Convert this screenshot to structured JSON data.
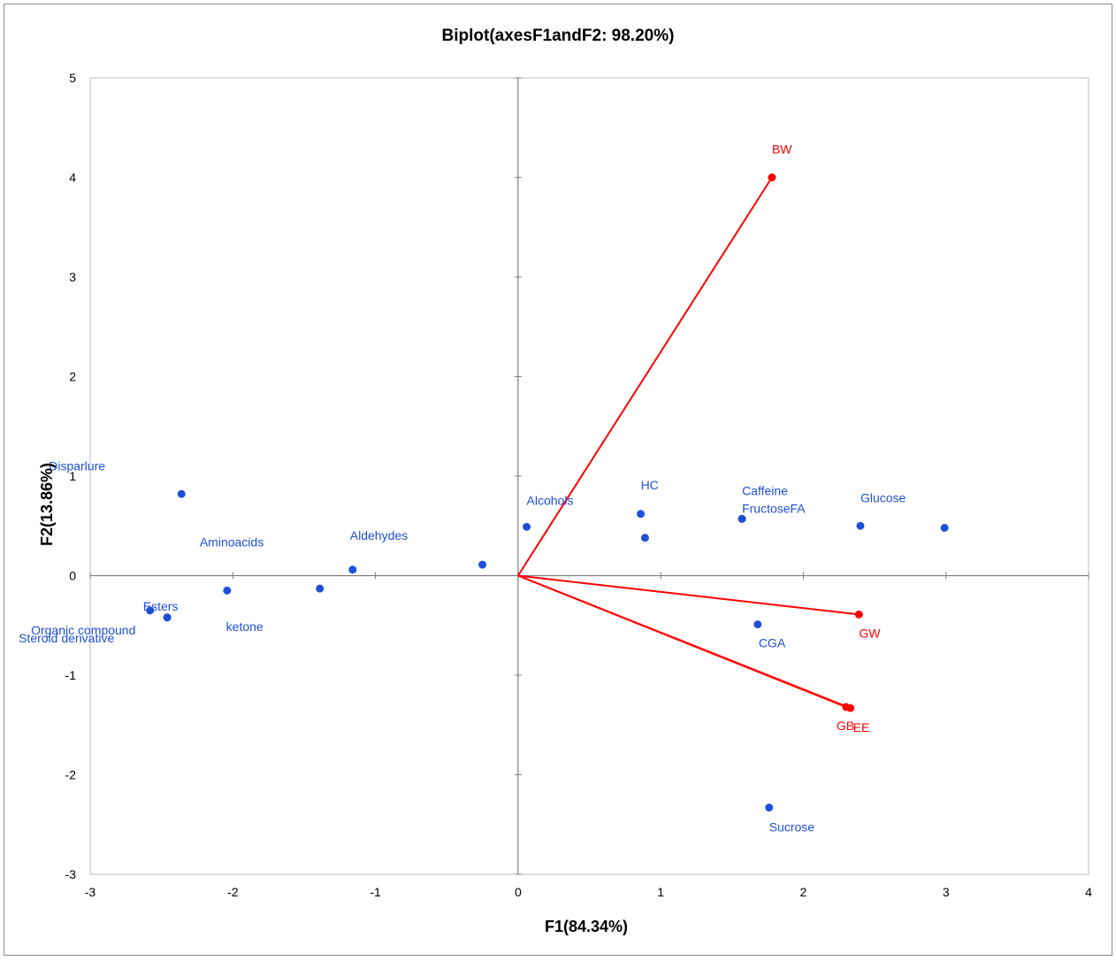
{
  "chart_data": {
    "type": "scatter",
    "title": "Biplot(axesF1andF2: 98.20%)",
    "xlabel": "F1(84.34%)",
    "ylabel": "F2(13.86%)",
    "xlim": [
      -3,
      4
    ],
    "ylim": [
      -3,
      5
    ],
    "xticks": [
      -3,
      -2,
      -1,
      0,
      1,
      2,
      3,
      4
    ],
    "yticks": [
      -3,
      -2,
      -1,
      0,
      1,
      2,
      3,
      4,
      5
    ],
    "grid": false,
    "colors": {
      "observations": "#1f4fd8",
      "variables": "#ff0000",
      "axes": "#808080"
    },
    "observations": [
      {
        "label": "Disparlure",
        "x": -2.36,
        "y": 0.82
      },
      {
        "label": "Aminoacids",
        "x": -2.04,
        "y": -0.15
      },
      {
        "label": "Aldehydes",
        "x": -1.16,
        "y": 0.06
      },
      {
        "label": "ketone",
        "x": -1.39,
        "y": -0.13
      },
      {
        "label": "Esters",
        "x": -2.58,
        "y": -0.35
      },
      {
        "label": "Organic compound",
        "x": -2.46,
        "y": -0.42
      },
      {
        "label": "Steroid derivative",
        "x": -2.46,
        "y": -0.42
      },
      {
        "label": "",
        "x": -0.25,
        "y": 0.11
      },
      {
        "label": "Alcohols",
        "x": 0.06,
        "y": 0.49
      },
      {
        "label": "HC",
        "x": 0.86,
        "y": 0.62
      },
      {
        "label": "",
        "x": 0.89,
        "y": 0.38
      },
      {
        "label": "Caffeine",
        "x": 1.57,
        "y": 0.57
      },
      {
        "label": "FructoseFA",
        "x": 1.57,
        "y": 0.57
      },
      {
        "label": "Glucose",
        "x": 2.4,
        "y": 0.5
      },
      {
        "label": "",
        "x": 2.99,
        "y": 0.48
      },
      {
        "label": "CGA",
        "x": 1.68,
        "y": -0.49
      },
      {
        "label": "Sucrose",
        "x": 1.76,
        "y": -2.33
      }
    ],
    "variables": [
      {
        "label": "BW",
        "x": 1.78,
        "y": 4.0
      },
      {
        "label": "GW",
        "x": 2.39,
        "y": -0.39
      },
      {
        "label": "GB",
        "x": 2.3,
        "y": -1.32
      },
      {
        "label": "EE",
        "x": 2.33,
        "y": -1.33
      }
    ]
  }
}
